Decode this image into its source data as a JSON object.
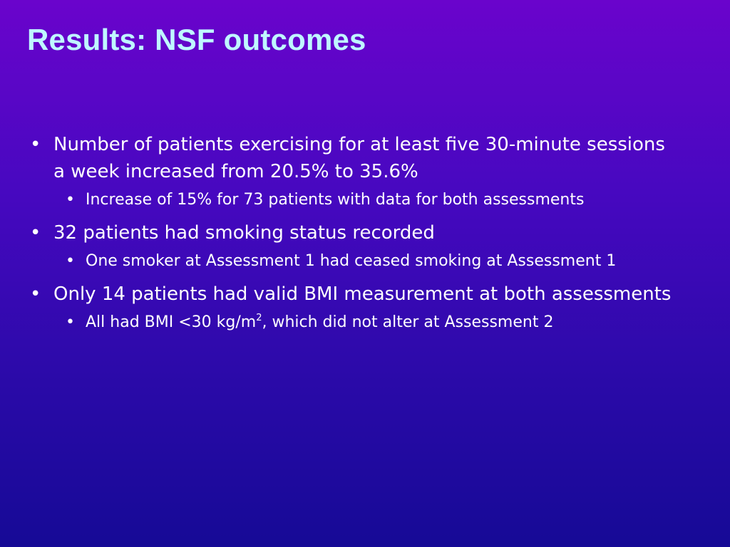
{
  "slide": {
    "title": "Results: NSF outcomes",
    "bullets": [
      {
        "text": "Number of patients exercising for at least five 30-minute sessions a week increased from 20.5% to 35.6%",
        "sub": [
          {
            "text": "Increase of 15% for 73 patients with data for both assessments"
          }
        ]
      },
      {
        "text": "32 patients had smoking status recorded",
        "sub": [
          {
            "text": "One smoker at Assessment 1 had ceased smoking at Assessment 1"
          }
        ]
      },
      {
        "text": "Only 14 patients had valid BMI measurement at both assessments",
        "sub": [
          {
            "text_before": "All had BMI <30 kg/m",
            "superscript": "2",
            "text_after": ", which did not alter at Assessment 2"
          }
        ]
      }
    ]
  },
  "colors": {
    "title": "#bff8ff",
    "body_text": "#ffffff",
    "background_top": "#6a04cc",
    "background_bottom": "#160a96"
  }
}
